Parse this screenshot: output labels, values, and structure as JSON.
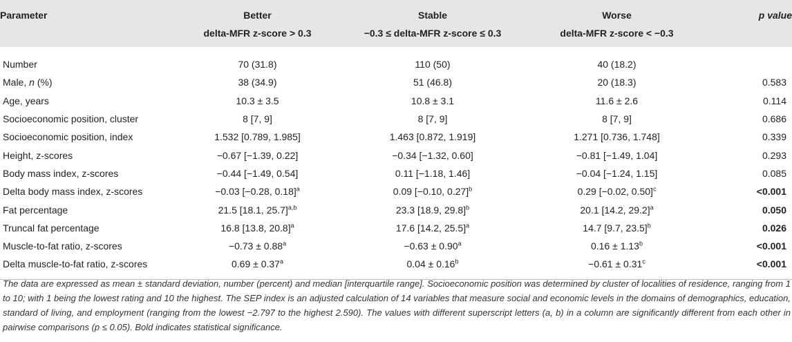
{
  "table": {
    "headers": {
      "parameter": "Parameter",
      "better_line1": "Better",
      "better_line2": "delta-MFR z-score > 0.3",
      "stable_line1": "Stable",
      "stable_line2": "−0.3 ≤ delta-MFR z-score ≤ 0.3",
      "worse_line1": "Worse",
      "worse_line2": "delta-MFR z-score < −0.3",
      "pvalue": "p value"
    },
    "rows": [
      {
        "param": "Number",
        "param_italic": "",
        "param_suffix": "",
        "better": "70 (31.8)",
        "better_sup": "",
        "stable": "110 (50)",
        "stable_sup": "",
        "worse": "40 (18.2)",
        "worse_sup": "",
        "p": ""
      },
      {
        "param": "Male, ",
        "param_italic": "n",
        "param_suffix": " (%)",
        "better": "38 (34.9)",
        "better_sup": "",
        "stable": "51 (46.8)",
        "stable_sup": "",
        "worse": "20 (18.3)",
        "worse_sup": "",
        "p": "0.583"
      },
      {
        "param": "Age, years",
        "param_italic": "",
        "param_suffix": "",
        "better": "10.3 ± 3.5",
        "better_sup": "",
        "stable": "10.8 ± 3.1",
        "stable_sup": "",
        "worse": "11.6 ± 2.6",
        "worse_sup": "",
        "p": "0.114"
      },
      {
        "param": "Socioeconomic position, cluster",
        "param_italic": "",
        "param_suffix": "",
        "better": "8 [7, 9]",
        "better_sup": "",
        "stable": "8 [7, 9]",
        "stable_sup": "",
        "worse": "8 [7, 9]",
        "worse_sup": "",
        "p": "0.686"
      },
      {
        "param": "Socioeconomic position, index",
        "param_italic": "",
        "param_suffix": "",
        "better": "1.532 [0.789, 1.985]",
        "better_sup": "",
        "stable": "1.463 [0.872, 1.919]",
        "stable_sup": "",
        "worse": "1.271 [0.736, 1.748]",
        "worse_sup": "",
        "p": "0.339"
      },
      {
        "param": "Height, z-scores",
        "param_italic": "",
        "param_suffix": "",
        "better": "−0.67 [−1.39, 0.22]",
        "better_sup": "",
        "stable": "−0.34 [−1.32, 0.60]",
        "stable_sup": "",
        "worse": "−0.81 [−1.49, 1.04]",
        "worse_sup": "",
        "p": "0.293"
      },
      {
        "param": "Body mass index, z-scores",
        "param_italic": "",
        "param_suffix": "",
        "better": "−0.44 [−1.49, 0.54]",
        "better_sup": "",
        "stable": "0.11 [−1.18, 1.46]",
        "stable_sup": "",
        "worse": "−0.04 [−1.24, 1.15]",
        "worse_sup": "",
        "p": "0.085"
      },
      {
        "param": "Delta body mass index, z-scores",
        "param_italic": "",
        "param_suffix": "",
        "better": "−0.03 [−0.28, 0.18]",
        "better_sup": "a",
        "stable": "0.09 [−0.10, 0.27]",
        "stable_sup": "b",
        "worse": "0.29 [−0.02, 0.50]",
        "worse_sup": "c",
        "p": "<0.001",
        "p_bold": true
      },
      {
        "param": "Fat percentage",
        "param_italic": "",
        "param_suffix": "",
        "better": "21.5 [18.1, 25.7]",
        "better_sup": "a,b",
        "stable": "23.3 [18.9, 29.8]",
        "stable_sup": "b",
        "worse": "20.1 [14.2, 29.2]",
        "worse_sup": "a",
        "p": "0.050",
        "p_bold": true
      },
      {
        "param": "Truncal fat percentage",
        "param_italic": "",
        "param_suffix": "",
        "better": "16.8 [13.8, 20.8]",
        "better_sup": "a",
        "stable": "17.6 [14.2, 25.5]",
        "stable_sup": "a",
        "worse": "14.7 [9.7, 23.5]",
        "worse_sup": "b",
        "p": "0.026",
        "p_bold": true
      },
      {
        "param": "Muscle-to-fat ratio, z-scores",
        "param_italic": "",
        "param_suffix": "",
        "better": "−0.73 ± 0.88",
        "better_sup": "a",
        "stable": "−0.63 ± 0.90",
        "stable_sup": "a",
        "worse": "0.16 ± 1.13",
        "worse_sup": "b",
        "p": "<0.001",
        "p_bold": true
      },
      {
        "param": "Delta muscle-to-fat ratio, z-scores",
        "param_italic": "",
        "param_suffix": "",
        "better": "0.69 ± 0.37",
        "better_sup": "a",
        "stable": "0.04 ± 0.16",
        "stable_sup": "b",
        "worse": "−0.61 ± 0.31",
        "worse_sup": "c",
        "p": "<0.001",
        "p_bold": true
      }
    ]
  },
  "footnote": "The data are expressed as mean ± standard deviation, number (percent) and median [interquartile range]. Socioeconomic position was determined by cluster of localities of residence, ranging from 1 to 10; with 1 being the lowest rating and 10 the highest. The SEP index is an adjusted calculation of 14 variables that measure social and economic levels in the domains of demographics, education, standard of living, and employment (ranging from the lowest −2.797 to the highest 2.590). The values with different superscript letters (a, b) in a column are significantly different from each other in pairwise comparisons (p ≤ 0.05). Bold indicates statistical significance."
}
